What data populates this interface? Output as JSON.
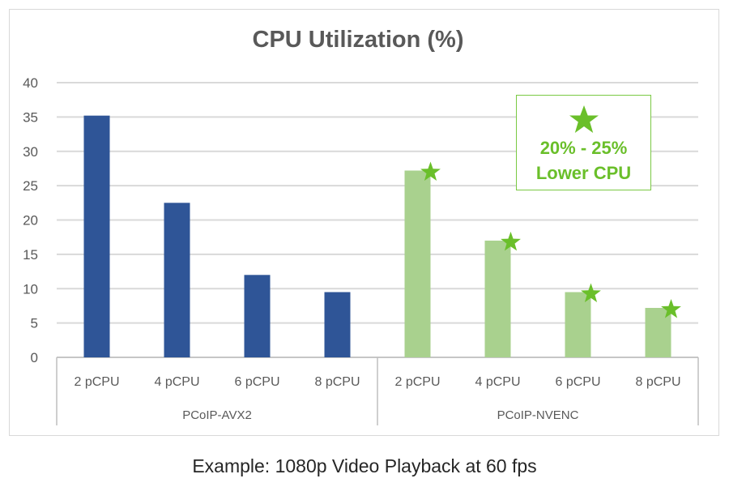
{
  "title": "CPU Utilization (%)",
  "caption": "Example: 1080p Video Playback at 60 fps",
  "callout": {
    "line1": "20% - 25%",
    "line2": "Lower CPU",
    "icon": "star-icon"
  },
  "colors": {
    "avx2": "#2f5597",
    "nvenc": "#a9d18e",
    "star": "#6abf2a",
    "grid": "#d9d9d9",
    "text": "#595959"
  },
  "y_ticks": [
    "0",
    "5",
    "10",
    "15",
    "20",
    "25",
    "30",
    "35",
    "40"
  ],
  "groups": [
    "PCoIP-AVX2",
    "PCoIP-NVENC"
  ],
  "categories": [
    "2 pCPU",
    "4 pCPU",
    "6 pCPU",
    "8 pCPU",
    "2 pCPU",
    "4 pCPU",
    "6 pCPU",
    "8 pCPU"
  ],
  "chart_data": {
    "type": "bar",
    "title": "CPU Utilization (%)",
    "subtitle": "Example: 1080p Video Playback at 60 fps",
    "xlabel": "",
    "ylabel": "",
    "ylim": [
      0,
      40
    ],
    "y_ticks": [
      0,
      5,
      10,
      15,
      20,
      25,
      30,
      35,
      40
    ],
    "grid": true,
    "legend": "none",
    "groups": [
      {
        "name": "PCoIP-AVX2",
        "categories": [
          "2 pCPU",
          "4 pCPU",
          "6 pCPU",
          "8 pCPU"
        ],
        "values": [
          35.2,
          22.5,
          12.0,
          9.5
        ],
        "color": "#2f5597"
      },
      {
        "name": "PCoIP-NVENC",
        "categories": [
          "2 pCPU",
          "4 pCPU",
          "6 pCPU",
          "8 pCPU"
        ],
        "values": [
          27.2,
          17.0,
          9.5,
          7.2
        ],
        "color": "#a9d18e"
      }
    ],
    "annotations": [
      "star markers on NVENC bars",
      "20% - 25% Lower CPU"
    ]
  }
}
